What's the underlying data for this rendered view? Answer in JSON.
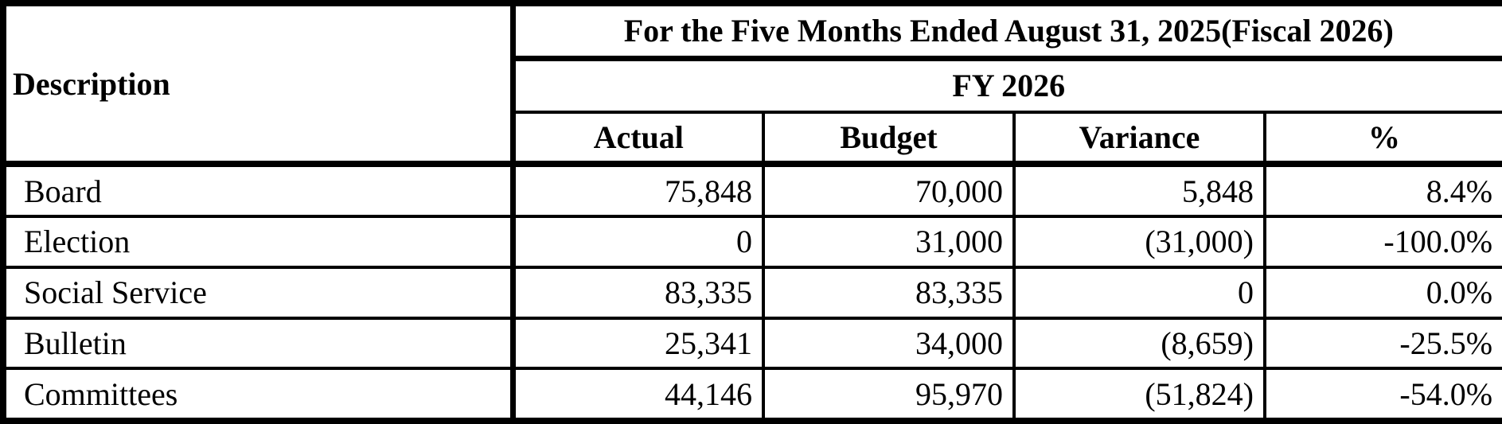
{
  "table": {
    "description_header": "Description",
    "period_header": "For the Five Months Ended August 31, 2025(Fiscal 2026)",
    "fy_header": "FY 2026",
    "columns": [
      "Actual",
      "Budget",
      "Variance",
      "%"
    ],
    "rows": [
      {
        "description": "Board",
        "actual": "75,848",
        "budget": "70,000",
        "variance": "5,848",
        "percent": "8.4%"
      },
      {
        "description": "Election",
        "actual": "0",
        "budget": "31,000",
        "variance": "(31,000)",
        "percent": "-100.0%"
      },
      {
        "description": "Social Service",
        "actual": "83,335",
        "budget": "83,335",
        "variance": "0",
        "percent": "0.0%"
      },
      {
        "description": "Bulletin",
        "actual": "25,341",
        "budget": "34,000",
        "variance": "(8,659)",
        "percent": "-25.5%"
      },
      {
        "description": "Committees",
        "actual": "44,146",
        "budget": "95,970",
        "variance": "(51,824)",
        "percent": "-54.0%"
      }
    ]
  }
}
